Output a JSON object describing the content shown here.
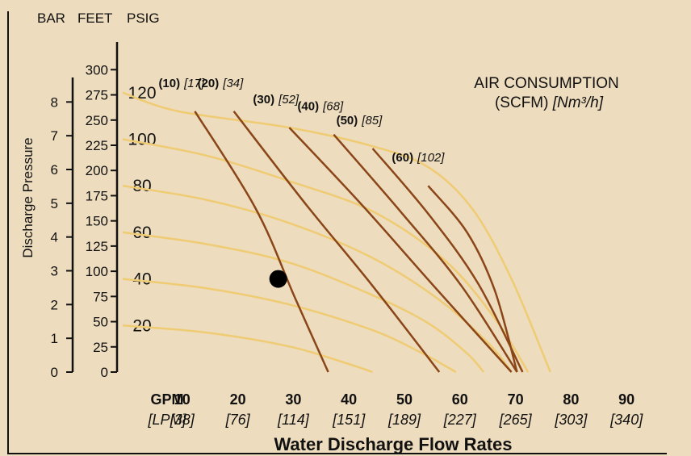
{
  "headers": {
    "bar": "BAR",
    "feet": "FEET",
    "psig": "PSIG",
    "gpm": "GPM",
    "lpm": "[LPM]"
  },
  "y_axis_title": "Discharge Pressure",
  "x_axis_title": "Water Discharge Flow Rates",
  "air_title": {
    "line1": "AIR CONSUMPTION",
    "line2_plain": "(SCFM) ",
    "line2_italic": "[Nm³/h]"
  },
  "bar_ticks": [
    "0",
    "1",
    "2",
    "3",
    "4",
    "5",
    "6",
    "7",
    "8"
  ],
  "feet_ticks": [
    "0",
    "25",
    "50",
    "75",
    "100",
    "125",
    "150",
    "175",
    "200",
    "225",
    "250",
    "275",
    "300"
  ],
  "psig_ticks": [
    "20",
    "40",
    "60",
    "80",
    "100",
    "120"
  ],
  "gpm_ticks": [
    "10",
    "20",
    "30",
    "40",
    "50",
    "60",
    "70",
    "80",
    "90"
  ],
  "lpm_ticks": [
    "[38]",
    "[76]",
    "[114]",
    "[151]",
    "[189]",
    "[227]",
    "[265]",
    "[303]",
    "[340]"
  ],
  "colors": {
    "background": "#eddcbd",
    "performance_curve": "#efcc74",
    "air_curve": "#8a4518",
    "marker": "#000000"
  },
  "chart_data": {
    "type": "line",
    "xlabel": "Water Discharge Flow Rates",
    "ylabel": "Discharge Pressure",
    "x_units": "GPM [LPM]",
    "y_units": "PSIG / FEET / BAR",
    "xlim": [
      0,
      90
    ],
    "ylim": [
      0,
      130
    ],
    "grid": false,
    "performance_curves": [
      {
        "points": [
          [
            0,
            120
          ],
          [
            10,
            112
          ],
          [
            30,
            105
          ],
          [
            45,
            97
          ],
          [
            55,
            88
          ],
          [
            63,
            70
          ],
          [
            70,
            40
          ],
          [
            77,
            0
          ]
        ]
      },
      {
        "points": [
          [
            0,
            100
          ],
          [
            15,
            93
          ],
          [
            30,
            82
          ],
          [
            45,
            69
          ],
          [
            58,
            48
          ],
          [
            67,
            23
          ],
          [
            73,
            0
          ]
        ]
      },
      {
        "points": [
          [
            0,
            80
          ],
          [
            15,
            74
          ],
          [
            30,
            64
          ],
          [
            45,
            49
          ],
          [
            57,
            31
          ],
          [
            66,
            12
          ],
          [
            70,
            0
          ]
        ]
      },
      {
        "points": [
          [
            0,
            60
          ],
          [
            15,
            55
          ],
          [
            30,
            47
          ],
          [
            45,
            33
          ],
          [
            55,
            21
          ],
          [
            62,
            8
          ],
          [
            65,
            0
          ]
        ]
      },
      {
        "points": [
          [
            0,
            40
          ],
          [
            15,
            36
          ],
          [
            30,
            29
          ],
          [
            45,
            18
          ],
          [
            54,
            8
          ],
          [
            60,
            0
          ]
        ]
      },
      {
        "points": [
          [
            0,
            20
          ],
          [
            15,
            17
          ],
          [
            30,
            11
          ],
          [
            40,
            4
          ],
          [
            45,
            0
          ]
        ]
      }
    ],
    "air_consumption_curves": [
      {
        "name": "(10) [17]",
        "scfm": "(10)",
        "nm3h": "[17]",
        "points": [
          [
            13,
            112
          ],
          [
            24,
            70
          ],
          [
            31,
            32
          ],
          [
            37,
            0
          ]
        ]
      },
      {
        "name": "(20) [34]",
        "scfm": "(20)",
        "nm3h": "[34]",
        "points": [
          [
            20,
            112
          ],
          [
            33,
            72
          ],
          [
            45,
            37
          ],
          [
            57,
            0
          ]
        ]
      },
      {
        "name": "(30) [52]",
        "scfm": "(30)",
        "nm3h": "[52]",
        "points": [
          [
            30,
            105
          ],
          [
            43,
            72
          ],
          [
            56,
            37
          ],
          [
            70,
            0
          ]
        ]
      },
      {
        "name": "(40) [68]",
        "scfm": "(40)",
        "nm3h": "[68]",
        "points": [
          [
            38,
            102
          ],
          [
            50,
            69
          ],
          [
            61,
            37
          ],
          [
            71,
            0
          ]
        ]
      },
      {
        "name": "(50) [85]",
        "scfm": "(50)",
        "nm3h": "[85]",
        "points": [
          [
            45,
            96
          ],
          [
            55,
            68
          ],
          [
            64,
            38
          ],
          [
            72,
            0
          ]
        ]
      },
      {
        "name": "(60) [102]",
        "scfm": "(60)",
        "nm3h": "[102]",
        "points": [
          [
            55,
            80
          ],
          [
            62,
            60
          ],
          [
            67,
            35
          ],
          [
            71,
            0
          ]
        ]
      }
    ],
    "marker": {
      "x": 28,
      "y": 40
    }
  }
}
